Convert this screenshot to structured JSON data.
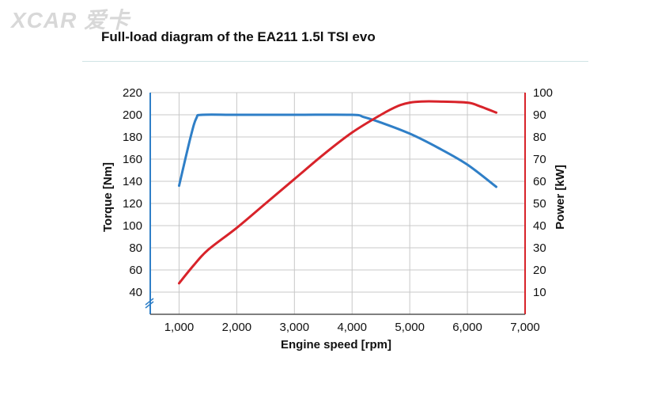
{
  "watermark": "XCAR 爱卡",
  "chart_data": {
    "type": "line",
    "title": "Full-load diagram of the EA211 1.5l TSI evo",
    "xlabel": "Engine speed [rpm]",
    "ylabel_left": "Torque [Nm]",
    "ylabel_right": "Power [kW]",
    "xlim": [
      500,
      7000
    ],
    "xticks": [
      1000,
      2000,
      3000,
      4000,
      5000,
      6000,
      7000
    ],
    "xtick_labels": [
      "1,000",
      "2,000",
      "3,000",
      "4,000",
      "5,000",
      "6,000",
      "7,000"
    ],
    "ylim_left": [
      20,
      220
    ],
    "yticks_left": [
      40,
      60,
      80,
      100,
      120,
      140,
      160,
      180,
      200,
      220
    ],
    "ylim_right": [
      0,
      100
    ],
    "yticks_right": [
      10,
      20,
      30,
      40,
      50,
      60,
      70,
      80,
      90,
      100
    ],
    "grid": true,
    "series": [
      {
        "name": "Torque",
        "axis": "left",
        "color": "#2f7fc7",
        "x": [
          1000,
          1200,
          1300,
          1400,
          2000,
          3000,
          4000,
          4200,
          4500,
          5000,
          5500,
          6000,
          6500
        ],
        "values": [
          136,
          180,
          197,
          200,
          200,
          200,
          200,
          198,
          193,
          183,
          170,
          155,
          135
        ]
      },
      {
        "name": "Power",
        "axis": "right",
        "color": "#d8232a",
        "x": [
          1000,
          1250,
          1500,
          2000,
          2500,
          3000,
          3500,
          4000,
          4500,
          4800,
          5000,
          5200,
          5500,
          6000,
          6200,
          6500
        ],
        "values": [
          14,
          22,
          29,
          39,
          50,
          61,
          72,
          82,
          90,
          94,
          95.5,
          96,
          96,
          95.5,
          94,
          91
        ]
      }
    ]
  }
}
